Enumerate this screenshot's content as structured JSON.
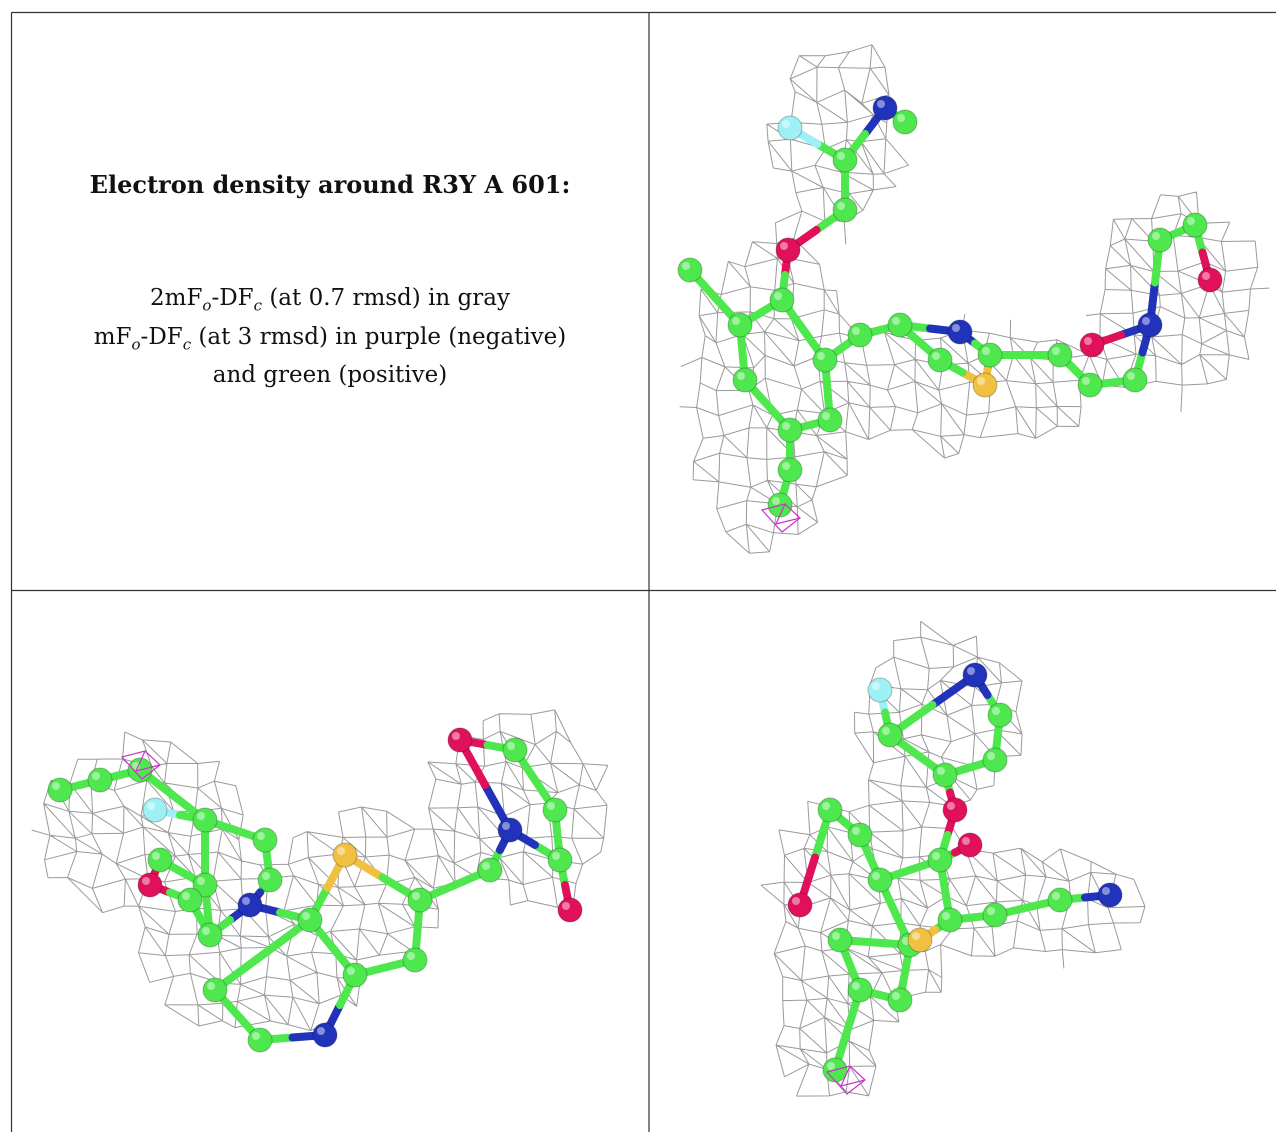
{
  "caption": {
    "title": "Electron density around R3Y A 601:",
    "lines": [
      [
        "2mF",
        "o",
        "-DF",
        "c",
        " (at 0.7 rmsd) in gray"
      ],
      [
        "mF",
        "o",
        "-DF",
        "c",
        " (at 3 rmsd) in purple (negative)"
      ],
      [
        "and green (positive)"
      ]
    ]
  }
}
